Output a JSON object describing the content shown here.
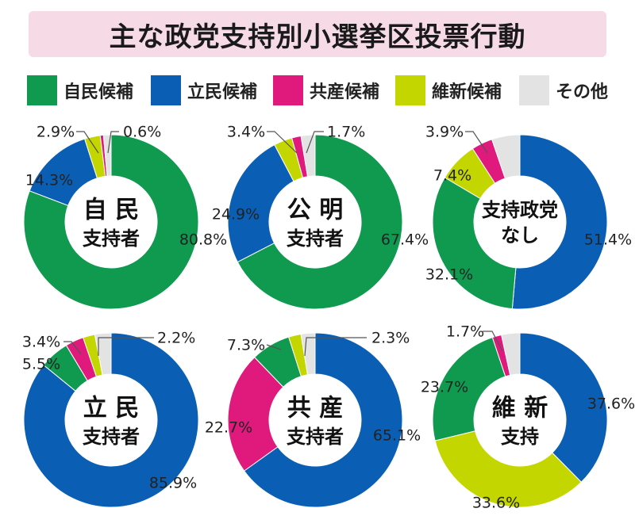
{
  "title": "主な政党支持別小選挙区投票行動",
  "colors": {
    "title_background": "#f6dbe7",
    "ldp": "#0f9a50",
    "cdp": "#0a5fb4",
    "jcp": "#e0197d",
    "ishin": "#c4d600",
    "other": "#e3e3e3",
    "leader": "#555555"
  },
  "legend": [
    {
      "label": "自民候補",
      "color_key": "ldp"
    },
    {
      "label": "立民候補",
      "color_key": "cdp"
    },
    {
      "label": "共産候補",
      "color_key": "jcp"
    },
    {
      "label": "維新候補",
      "color_key": "ishin"
    },
    {
      "label": "その他",
      "color_key": "other"
    }
  ],
  "chart_data": [
    {
      "type": "pie",
      "center_label": [
        "自 民",
        "支持者"
      ],
      "slices": [
        {
          "legend": "自民候補",
          "value": 80.8,
          "label": "80.8%"
        },
        {
          "legend": "立民候補",
          "value": 14.3,
          "label": "14.3%"
        },
        {
          "legend": "維新候補",
          "value": 2.9,
          "label": "2.9%"
        },
        {
          "legend": "共産候補",
          "value": 0.6,
          "label": "0.6%"
        },
        {
          "legend": "その他",
          "value": 1.4,
          "label": ""
        }
      ]
    },
    {
      "type": "pie",
      "center_label": [
        "公 明",
        "支持者"
      ],
      "slices": [
        {
          "legend": "自民候補",
          "value": 67.4,
          "label": "67.4%"
        },
        {
          "legend": "立民候補",
          "value": 24.9,
          "label": "24.9%"
        },
        {
          "legend": "維新候補",
          "value": 3.4,
          "label": "3.4%"
        },
        {
          "legend": "共産候補",
          "value": 1.7,
          "label": "1.7%"
        },
        {
          "legend": "その他",
          "value": 2.6,
          "label": ""
        }
      ]
    },
    {
      "type": "pie",
      "center_label": [
        "支持政党",
        "なし"
      ],
      "slices": [
        {
          "legend": "立民候補",
          "value": 51.4,
          "label": "51.4%"
        },
        {
          "legend": "自民候補",
          "value": 32.1,
          "label": "32.1%"
        },
        {
          "legend": "維新候補",
          "value": 7.4,
          "label": "7.4%"
        },
        {
          "legend": "共産候補",
          "value": 3.9,
          "label": "3.9%"
        },
        {
          "legend": "その他",
          "value": 5.2,
          "label": ""
        }
      ]
    },
    {
      "type": "pie",
      "center_label": [
        "立 民",
        "支持者"
      ],
      "slices": [
        {
          "legend": "立民候補",
          "value": 85.9,
          "label": "85.9%"
        },
        {
          "legend": "自民候補",
          "value": 5.5,
          "label": "5.5%"
        },
        {
          "legend": "共産候補",
          "value": 3.4,
          "label": "3.4%"
        },
        {
          "legend": "維新候補",
          "value": 2.2,
          "label": "2.2%"
        },
        {
          "legend": "その他",
          "value": 3.0,
          "label": ""
        }
      ]
    },
    {
      "type": "pie",
      "center_label": [
        "共 産",
        "支持者"
      ],
      "slices": [
        {
          "legend": "立民候補",
          "value": 65.1,
          "label": "65.1%"
        },
        {
          "legend": "共産候補",
          "value": 22.7,
          "label": "22.7%"
        },
        {
          "legend": "自民候補",
          "value": 7.3,
          "label": "7.3%"
        },
        {
          "legend": "維新候補",
          "value": 2.3,
          "label": "2.3%"
        },
        {
          "legend": "その他",
          "value": 2.6,
          "label": ""
        }
      ]
    },
    {
      "type": "pie",
      "center_label": [
        "維 新",
        "支持"
      ],
      "slices": [
        {
          "legend": "立民候補",
          "value": 37.6,
          "label": "37.6%"
        },
        {
          "legend": "維新候補",
          "value": 33.6,
          "label": "33.6%"
        },
        {
          "legend": "自民候補",
          "value": 23.7,
          "label": "23.7%"
        },
        {
          "legend": "共産候補",
          "value": 1.7,
          "label": "1.7%"
        },
        {
          "legend": "その他",
          "value": 3.4,
          "label": ""
        }
      ]
    }
  ]
}
